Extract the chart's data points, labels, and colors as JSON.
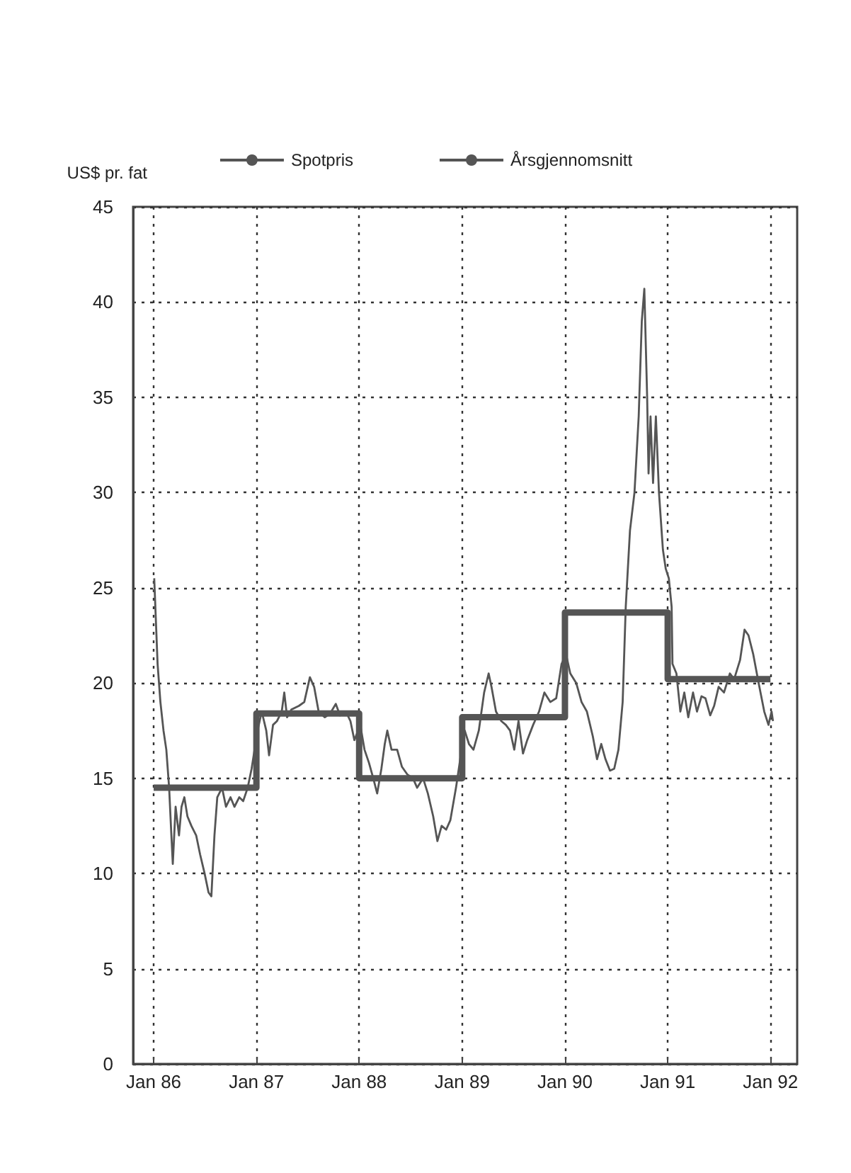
{
  "chart_data": {
    "type": "line",
    "ylabel": "US$ pr. fat",
    "legend": "top",
    "grid": true,
    "xlim": [
      "1985-10-20",
      "1992-04-05"
    ],
    "ylim": [
      0,
      45
    ],
    "yticks": [
      0,
      5,
      10,
      15,
      20,
      25,
      30,
      35,
      40,
      45
    ],
    "xticks": [
      {
        "value": "1986-01-01",
        "label": "Jan 86"
      },
      {
        "value": "1987-01-01",
        "label": "Jan 87"
      },
      {
        "value": "1988-01-01",
        "label": "Jan 88"
      },
      {
        "value": "1989-01-01",
        "label": "Jan 89"
      },
      {
        "value": "1990-01-01",
        "label": "Jan 90"
      },
      {
        "value": "1991-01-01",
        "label": "Jan 91"
      },
      {
        "value": "1992-01-01",
        "label": "Jan 92"
      }
    ],
    "series": [
      {
        "name": "Spotpris",
        "color": "#555555",
        "x": [
          "1986-01-03",
          "1986-01-15",
          "1986-01-25",
          "1986-02-05",
          "1986-02-15",
          "1986-02-25",
          "1986-03-05",
          "1986-03-10",
          "1986-03-20",
          "1986-04-01",
          "1986-04-10",
          "1986-04-20",
          "1986-05-01",
          "1986-05-15",
          "1986-06-01",
          "1986-06-15",
          "1986-07-01",
          "1986-07-15",
          "1986-07-25",
          "1986-08-05",
          "1986-08-15",
          "1986-09-01",
          "1986-09-15",
          "1986-10-01",
          "1986-10-15",
          "1986-11-01",
          "1986-11-15",
          "1986-12-01",
          "1986-12-15",
          "1987-01-05",
          "1987-01-20",
          "1987-02-05",
          "1987-02-15",
          "1987-03-01",
          "1987-03-15",
          "1987-04-01",
          "1987-04-10",
          "1987-04-20",
          "1987-05-05",
          "1987-06-01",
          "1987-06-20",
          "1987-07-10",
          "1987-07-25",
          "1987-08-10",
          "1987-09-01",
          "1987-09-20",
          "1987-10-10",
          "1987-10-25",
          "1987-11-15",
          "1987-12-01",
          "1987-12-15",
          "1988-01-05",
          "1988-01-20",
          "1988-02-05",
          "1988-02-20",
          "1988-03-05",
          "1988-03-20",
          "1988-04-01",
          "1988-04-10",
          "1988-04-25",
          "1988-05-15",
          "1988-06-01",
          "1988-06-20",
          "1988-07-10",
          "1988-07-25",
          "1988-08-15",
          "1988-09-01",
          "1988-09-20",
          "1988-10-05",
          "1988-10-20",
          "1988-11-05",
          "1988-11-20",
          "1988-12-10",
          "1988-12-25",
          "1989-01-10",
          "1989-01-25",
          "1989-02-10",
          "1989-03-01",
          "1989-03-20",
          "1989-04-05",
          "1989-04-15",
          "1989-05-01",
          "1989-05-20",
          "1989-06-05",
          "1989-06-20",
          "1989-07-05",
          "1989-07-20",
          "1989-08-05",
          "1989-08-20",
          "1989-09-10",
          "1989-10-01",
          "1989-10-20",
          "1989-11-10",
          "1989-12-01",
          "1989-12-20",
          "1990-01-05",
          "1990-01-20",
          "1990-02-10",
          "1990-03-01",
          "1990-03-20",
          "1990-04-10",
          "1990-04-25",
          "1990-05-10",
          "1990-05-25",
          "1990-06-10",
          "1990-06-25",
          "1990-07-10",
          "1990-07-25",
          "1990-08-05",
          "1990-08-20",
          "1990-09-05",
          "1990-09-20",
          "1990-10-01",
          "1990-10-10",
          "1990-10-20",
          "1990-10-25",
          "1990-11-01",
          "1990-11-10",
          "1990-11-20",
          "1990-12-01",
          "1990-12-15",
          "1990-12-25",
          "1991-01-05",
          "1991-01-15",
          "1991-01-18",
          "1991-02-01",
          "1991-02-15",
          "1991-03-01",
          "1991-03-15",
          "1991-04-01",
          "1991-04-15",
          "1991-05-01",
          "1991-05-15",
          "1991-06-01",
          "1991-06-15",
          "1991-07-01",
          "1991-07-20",
          "1991-08-10",
          "1991-08-25",
          "1991-09-15",
          "1991-10-01",
          "1991-10-15",
          "1991-11-01",
          "1991-11-20",
          "1991-12-10",
          "1991-12-25",
          "1992-01-05",
          "1992-01-10"
        ],
        "values": [
          25.5,
          21,
          19,
          17.5,
          16.5,
          14.5,
          12,
          10.5,
          13.5,
          12,
          13.5,
          14,
          13,
          12.5,
          12,
          11,
          10,
          9,
          8.8,
          12,
          14,
          14.5,
          13.5,
          14,
          13.5,
          14,
          13.8,
          14.5,
          15.5,
          17.5,
          18.5,
          17.5,
          16.2,
          17.8,
          18,
          18.5,
          19.5,
          18.2,
          18.6,
          18.8,
          19,
          20.3,
          19.8,
          18.5,
          18.2,
          18.4,
          18.9,
          18.3,
          18.5,
          18,
          17,
          17.8,
          16.5,
          15.8,
          15,
          14.2,
          15.5,
          16.8,
          17.5,
          16.5,
          16.5,
          15.6,
          15.2,
          15,
          14.5,
          15,
          14.2,
          13,
          11.7,
          12.5,
          12.3,
          12.8,
          14.5,
          16,
          17.5,
          16.8,
          16.5,
          17.5,
          19.5,
          20.5,
          19.8,
          18.5,
          18,
          17.8,
          17.5,
          16.5,
          18,
          16.3,
          17,
          17.8,
          18.5,
          19.5,
          19,
          19.2,
          21,
          21.5,
          20.5,
          20,
          19,
          18.5,
          17.2,
          16,
          16.8,
          16,
          15.4,
          15.5,
          16.5,
          19,
          24,
          28,
          30,
          34,
          39,
          40.7,
          35,
          31,
          34,
          30.5,
          34,
          30,
          27,
          26,
          25.5,
          24,
          21,
          20.5,
          18.5,
          19.5,
          18.2,
          19.5,
          18.5,
          19.3,
          19.2,
          18.3,
          18.8,
          19.8,
          19.5,
          20.5,
          20.2,
          21.2,
          22.8,
          22.5,
          21.5,
          20,
          18.5,
          17.8,
          18.5,
          18
        ]
      },
      {
        "name": "Årsgjennomsnitt",
        "type": "step",
        "color": "#555555",
        "x": [
          "1986-01-01",
          "1987-01-01",
          "1988-01-01",
          "1989-01-01",
          "1990-01-01",
          "1991-01-01",
          "1992-01-01"
        ],
        "values": [
          14.5,
          18.4,
          15,
          18.2,
          23.7,
          20.2,
          20.2
        ]
      }
    ]
  }
}
